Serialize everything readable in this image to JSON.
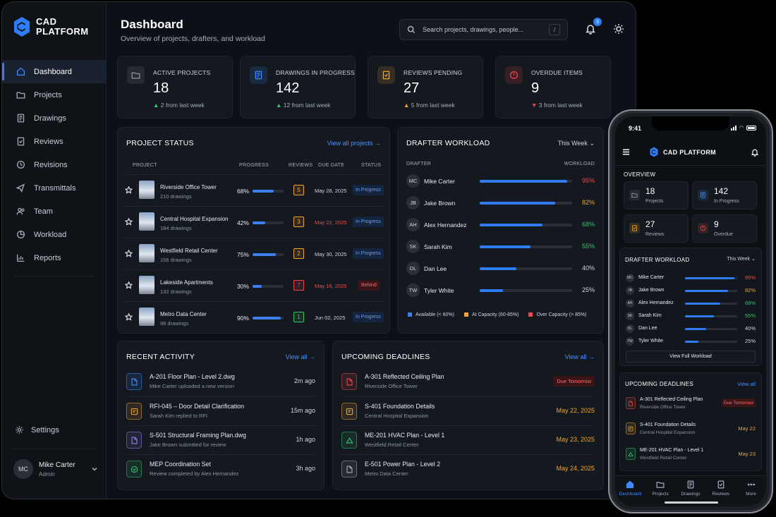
{
  "brand": {
    "line1": "CAD",
    "line2": "PLATFORM",
    "mobile_name": "CAD PLATFORM"
  },
  "nav": [
    {
      "label": "Dashboard",
      "icon": "dashboard-icon",
      "active": true
    },
    {
      "label": "Projects",
      "icon": "folder-icon"
    },
    {
      "label": "Drawings",
      "icon": "drawings-icon"
    },
    {
      "label": "Reviews",
      "icon": "reviews-icon"
    },
    {
      "label": "Revisions",
      "icon": "revisions-icon"
    },
    {
      "label": "Transmittals",
      "icon": "transmittals-icon"
    },
    {
      "label": "Team",
      "icon": "team-icon"
    },
    {
      "label": "Workload",
      "icon": "workload-icon"
    },
    {
      "label": "Reports",
      "icon": "reports-icon"
    }
  ],
  "settings_label": "Settings",
  "user": {
    "initials": "MC",
    "name": "Mike Carter",
    "role": "Admin"
  },
  "header": {
    "title": "Dashboard",
    "subtitle": "Overview of projects, drafters, and workload",
    "search_placeholder": "Search projects, drawings, people...",
    "search_shortcut": "/",
    "notifications_count": "3"
  },
  "stats": [
    {
      "label": "ACTIVE PROJECTS",
      "value": "18",
      "delta": "2",
      "delta_text": "from last week",
      "trend": "up",
      "color": "#8d95a1"
    },
    {
      "label": "DRAWINGS IN PROGRESS",
      "value": "142",
      "delta": "12",
      "delta_text": "from last week",
      "trend": "up",
      "color": "#3d8bff"
    },
    {
      "label": "REVIEWS PENDING",
      "value": "27",
      "delta": "5",
      "delta_text": "from last week",
      "trend": "amber",
      "color": "#f2a531"
    },
    {
      "label": "OVERDUE ITEMS",
      "value": "9",
      "delta": "3",
      "delta_text": "from last week",
      "trend": "down",
      "color": "#f04848"
    }
  ],
  "project_status": {
    "title": "PROJECT STATUS",
    "link": "View all projects",
    "headers": {
      "project": "PROJECT",
      "progress": "PROGRESS",
      "reviews": "REVIEWS",
      "due": "DUE DATE",
      "status": "STATUS"
    },
    "rows": [
      {
        "name": "Riverside Office Tower",
        "drawings": "210 drawings",
        "progress": 68,
        "progress_label": "68%",
        "reviews": "5",
        "review_color": "#f2a531",
        "due": "May 28, 2025",
        "due_overdue": false,
        "status": "In Progress",
        "status_kind": "progress"
      },
      {
        "name": "Central Hospital Expansion",
        "drawings": "184 drawings",
        "progress": 42,
        "progress_label": "42%",
        "reviews": "3",
        "review_color": "#f2a531",
        "due": "May 22, 2025",
        "due_overdue": true,
        "status": "In Progress",
        "status_kind": "progress"
      },
      {
        "name": "Westfield Retail Center",
        "drawings": "156 drawings",
        "progress": 75,
        "progress_label": "75%",
        "reviews": "2",
        "review_color": "#f2a531",
        "due": "May 30, 2025",
        "due_overdue": false,
        "status": "In Progress",
        "status_kind": "progress"
      },
      {
        "name": "Lakeside Apartments",
        "drawings": "132 drawings",
        "progress": 30,
        "progress_label": "30%",
        "reviews": "7",
        "review_color": "#f04848",
        "due": "May 16, 2025",
        "due_overdue": true,
        "status": "Behind",
        "status_kind": "behind"
      },
      {
        "name": "Metro Data Center",
        "drawings": "98 drawings",
        "progress": 90,
        "progress_label": "90%",
        "reviews": "1",
        "review_color": "#37c26c",
        "due": "Jun 02, 2025",
        "due_overdue": false,
        "status": "In Progress",
        "status_kind": "progress"
      }
    ]
  },
  "workload": {
    "title": "DRAFTER WORKLOAD",
    "period": "This Week",
    "headers": {
      "drafter": "DRAFTER",
      "workload": "WORKLOAD"
    },
    "rows": [
      {
        "initials": "MC",
        "name": "Mike Carter",
        "value": 95,
        "label": "95%",
        "color": "#f04848"
      },
      {
        "initials": "JB",
        "name": "Jake Brown",
        "value": 82,
        "label": "82%",
        "color": "#f2a531"
      },
      {
        "initials": "AH",
        "name": "Alex Hernandez",
        "value": 68,
        "label": "68%",
        "color": "#37c26c"
      },
      {
        "initials": "SK",
        "name": "Sarah Kim",
        "value": 55,
        "label": "55%",
        "color": "#37c26c"
      },
      {
        "initials": "DL",
        "name": "Dan Lee",
        "value": 40,
        "label": "40%",
        "color": "#cfd5de"
      },
      {
        "initials": "TW",
        "name": "Tyler White",
        "value": 25,
        "label": "25%",
        "color": "#cfd5de"
      }
    ],
    "legend": [
      {
        "label": "Available (< 60%)",
        "color": "#3d7ef0"
      },
      {
        "label": "At Capacity (60-85%)",
        "color": "#f2a531"
      },
      {
        "label": "Over Capacity (> 85%)",
        "color": "#f04848"
      }
    ]
  },
  "activity": {
    "title": "RECENT ACTIVITY",
    "link": "View all",
    "rows": [
      {
        "title": "A-201 Floor Plan - Level 2.dwg",
        "sub": "Mike Carter uploaded a new version",
        "time": "2m ago",
        "color": "#3d8bff",
        "icon": "file-icon"
      },
      {
        "title": "RFI-045 – Door Detail Clarification",
        "sub": "Sarah Kim replied to RFI",
        "time": "15m ago",
        "color": "#f2a531",
        "icon": "rfi-icon"
      },
      {
        "title": "S-501 Structural Framing Plan.dwg",
        "sub": "Jake Brown submitted for review",
        "time": "1h ago",
        "color": "#9b7df2",
        "icon": "file-icon"
      },
      {
        "title": "MEP Coordination Set",
        "sub": "Review completed by Alex Hernandez",
        "time": "3h ago",
        "color": "#37c26c",
        "icon": "check-circle-icon"
      }
    ]
  },
  "deadlines": {
    "title": "UPCOMING DEADLINES",
    "link": "View all",
    "rows": [
      {
        "title": "A-301 Reflected Ceiling Plan",
        "sub": "Riverside Office Tower",
        "due": "Due Tomorrow",
        "pill": true,
        "short": "Due Tomorrow",
        "color": "#f04848"
      },
      {
        "title": "S-401 Foundation Details",
        "sub": "Central Hospital Expansion",
        "due": "May 22, 2025",
        "pill": false,
        "short": "May 22",
        "color": "#f2a531"
      },
      {
        "title": "ME-201 HVAC Plan - Level 1",
        "sub": "Westfield Retail Center",
        "due": "May 23, 2025",
        "pill": false,
        "short": "May 23",
        "color": "#37c26c"
      },
      {
        "title": "E-501 Power Plan - Level 2",
        "sub": "Metro Data Center",
        "due": "May 24, 2025",
        "pill": false,
        "short": "May 24",
        "color": "#a7aeb9"
      }
    ]
  },
  "mobile": {
    "time": "9:41",
    "overview_title": "OVERVIEW",
    "stats": [
      {
        "value": "18",
        "label": "Projects",
        "color": "#8d95a1"
      },
      {
        "value": "142",
        "label": "In Progress",
        "color": "#3d8bff"
      },
      {
        "value": "27",
        "label": "Reviews",
        "color": "#f2a531"
      },
      {
        "value": "9",
        "label": "Overdue",
        "color": "#f04848"
      }
    ],
    "workload_title": "DRAFTER WORKLOAD",
    "workload_period": "This Week",
    "workload_button": "View Full Workload",
    "deadlines_title": "UPCOMING DEADLINES",
    "deadlines_link": "View all",
    "tabs": [
      {
        "label": "Dashboard",
        "icon": "home-icon",
        "active": true
      },
      {
        "label": "Projects",
        "icon": "folder-icon"
      },
      {
        "label": "Drawings",
        "icon": "drawings-icon"
      },
      {
        "label": "Reviews",
        "icon": "reviews-icon"
      },
      {
        "label": "More",
        "icon": "more-icon"
      }
    ]
  }
}
